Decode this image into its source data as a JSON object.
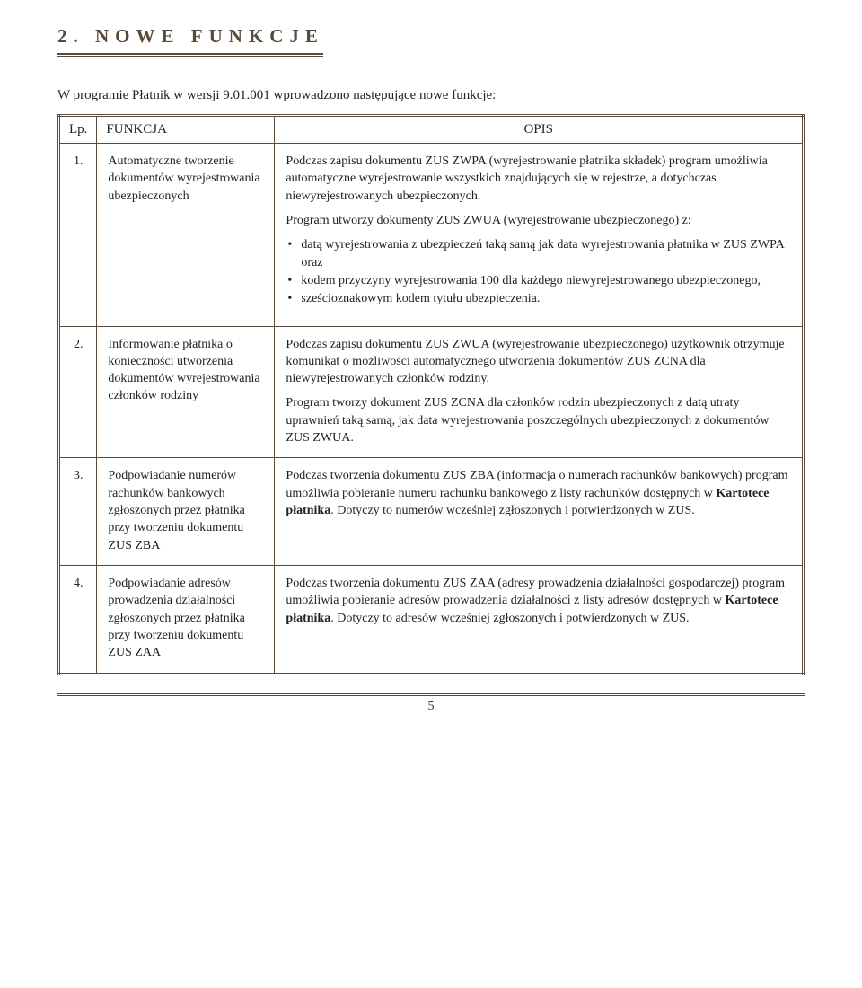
{
  "section_title": "2. NOWE FUNKCJE",
  "intro": "W programie Płatnik w wersji 9.01.001 wprowadzono następujące nowe funkcje:",
  "headers": {
    "lp": "Lp.",
    "func": "FUNKCJA",
    "desc": "OPIS"
  },
  "rows": [
    {
      "num": "1.",
      "func": "Automatyczne tworzenie dokumentów wyrejestrowania ubezpieczonych",
      "p1": "Podczas zapisu dokumentu ZUS ZWPA (wyrejestrowanie płatnika składek) program umożliwia automatyczne wyrejestrowanie wszystkich znajdujących się w rejestrze, a dotychczas niewyrejestrowanych ubezpieczonych.",
      "p2": "Program utworzy dokumenty ZUS ZWUA (wyrejestrowanie ubezpieczonego) z:",
      "li1": "datą wyrejestrowania z ubezpieczeń taką samą jak data wyrejestrowania płatnika w ZUS ZWPA oraz",
      "li2": "kodem przyczyny wyrejestrowania 100 dla każdego niewyrejestrowanego ubezpieczonego,",
      "li3": "sześcioznakowym kodem tytułu ubezpieczenia."
    },
    {
      "num": "2.",
      "func": "Informowanie płatnika o konieczności utworzenia dokumentów wyrejestrowania członków rodziny",
      "p1": "Podczas zapisu dokumentu ZUS ZWUA (wyrejestrowanie ubezpieczonego) użytkownik otrzymuje komunikat o możliwości automatycznego utworzenia dokumentów ZUS ZCNA dla niewyrejestrowanych członków rodziny.",
      "p2": "Program tworzy dokument ZUS ZCNA dla członków rodzin ubezpieczonych z datą utraty uprawnień taką samą, jak data wyrejestrowania poszczególnych ubezpieczonych z dokumentów ZUS ZWUA."
    },
    {
      "num": "3.",
      "func": "Podpowiadanie numerów rachunków bankowych zgłoszonych przez płatnika przy tworzeniu dokumentu ZUS ZBA",
      "p1a": "Podczas tworzenia dokumentu ZUS ZBA (informacja o numerach rachunków bankowych) program umożliwia pobieranie numeru rachunku bankowego z listy rachunków dostępnych w ",
      "p1b": "Kartotece płatnika",
      "p1c": ". Dotyczy to numerów wcześniej zgłoszonych i potwierdzonych w ZUS."
    },
    {
      "num": "4.",
      "func": "Podpowiadanie adresów prowadzenia działalności zgłoszonych przez płatnika przy tworzeniu dokumentu ZUS ZAA",
      "p1a": "Podczas tworzenia dokumentu ZUS ZAA (adresy prowadzenia działalności gospodarczej) program umożliwia pobieranie adresów prowadzenia działalności z listy adresów dostępnych w ",
      "p1b": "Kartotece płatnika",
      "p1c": ". Dotyczy to adresów wcześniej zgłoszonych i potwierdzonych w ZUS."
    }
  ],
  "page_number": "5"
}
